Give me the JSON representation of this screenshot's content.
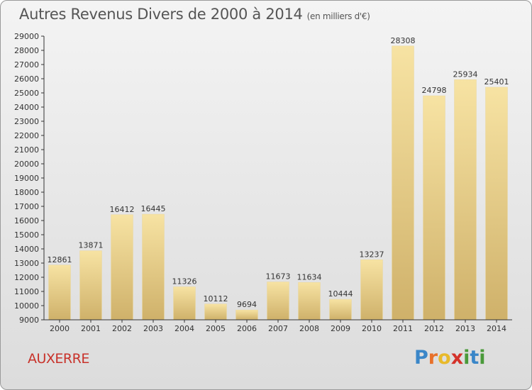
{
  "title": "Autres Revenus Divers de 2000 à 2014",
  "subtitle": "(en milliers d'€)",
  "location": "AUXERRE",
  "logo": {
    "letters": [
      "P",
      "r",
      "o",
      "x",
      "i",
      "t",
      "i"
    ],
    "colors": [
      "#3a86c8",
      "#e8702a",
      "#e8b92a",
      "#d4322a",
      "#4a9a3a",
      "#3a86c8",
      "#4a9a3a"
    ]
  },
  "colors": {
    "bar_light": "#f7e3a3",
    "bar_dark": "#cfb16a",
    "title": "#555555",
    "location": "#c8322a"
  },
  "chart_data": {
    "type": "bar",
    "categories": [
      "2000",
      "2001",
      "2002",
      "2003",
      "2004",
      "2005",
      "2006",
      "2007",
      "2008",
      "2009",
      "2010",
      "2011",
      "2012",
      "2013",
      "2014"
    ],
    "values": [
      12861,
      13871,
      16412,
      16445,
      11326,
      10112,
      9694,
      11673,
      11634,
      10444,
      13237,
      28308,
      24798,
      25934,
      25401
    ],
    "ylim": [
      9000,
      29000
    ],
    "ytick_step": 1000,
    "grid": false,
    "legend": "none"
  }
}
